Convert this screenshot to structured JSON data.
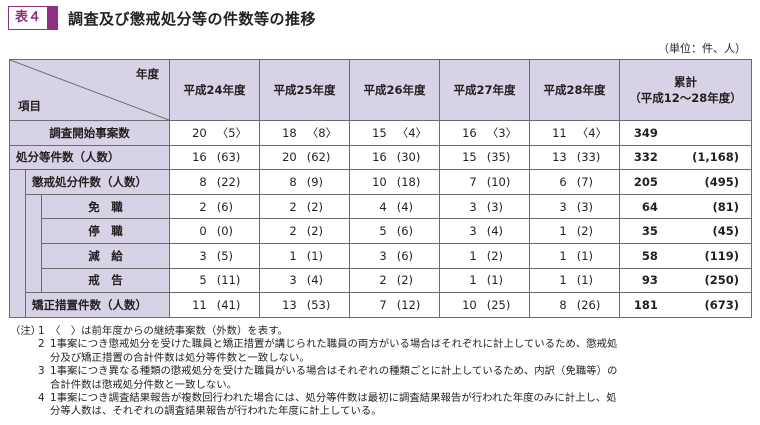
{
  "header": {
    "badge": "表４",
    "title": "調査及び懲戒処分等の件数等の推移"
  },
  "unit": "（単位：件、人）",
  "table": {
    "corner_top": "年度",
    "corner_bottom": "項目",
    "years": [
      "平成24年度",
      "平成25年度",
      "平成26年度",
      "平成27年度",
      "平成28年度"
    ],
    "total_header_1": "累計",
    "total_header_2": "（平成12〜28年度）",
    "rows": [
      {
        "label": "調査開始事案数",
        "values": [
          [
            "20",
            "〈5〉"
          ],
          [
            "18",
            "〈8〉"
          ],
          [
            "15",
            "〈4〉"
          ],
          [
            "16",
            "〈3〉"
          ],
          [
            "11",
            "〈4〉"
          ]
        ],
        "total": [
          "349",
          ""
        ]
      },
      {
        "label": "処分等件数（人数）",
        "values": [
          [
            "16",
            "(63)"
          ],
          [
            "20",
            "(62)"
          ],
          [
            "16",
            "(30)"
          ],
          [
            "15",
            "(35)"
          ],
          [
            "13",
            "(33)"
          ]
        ],
        "total": [
          "332",
          "(1,168)"
        ]
      },
      {
        "label": "懲戒処分件数（人数）",
        "values": [
          [
            "8",
            "(22)"
          ],
          [
            "8",
            "(9)"
          ],
          [
            "10",
            "(18)"
          ],
          [
            "7",
            "(10)"
          ],
          [
            "6",
            "(7)"
          ]
        ],
        "total": [
          "205",
          "(495)"
        ]
      },
      {
        "label": "免　職",
        "values": [
          [
            "2",
            "(6)"
          ],
          [
            "2",
            "(2)"
          ],
          [
            "4",
            "(4)"
          ],
          [
            "3",
            "(3)"
          ],
          [
            "3",
            "(3)"
          ]
        ],
        "total": [
          "64",
          "(81)"
        ]
      },
      {
        "label": "停　職",
        "values": [
          [
            "0",
            "(0)"
          ],
          [
            "2",
            "(2)"
          ],
          [
            "5",
            "(6)"
          ],
          [
            "3",
            "(4)"
          ],
          [
            "1",
            "(2)"
          ]
        ],
        "total": [
          "35",
          "(45)"
        ]
      },
      {
        "label": "減　給",
        "values": [
          [
            "3",
            "(5)"
          ],
          [
            "1",
            "(1)"
          ],
          [
            "3",
            "(6)"
          ],
          [
            "1",
            "(2)"
          ],
          [
            "1",
            "(1)"
          ]
        ],
        "total": [
          "58",
          "(119)"
        ]
      },
      {
        "label": "戒　告",
        "values": [
          [
            "5",
            "(11)"
          ],
          [
            "3",
            "(4)"
          ],
          [
            "2",
            "(2)"
          ],
          [
            "1",
            "(1)"
          ],
          [
            "1",
            "(1)"
          ]
        ],
        "total": [
          "93",
          "(250)"
        ]
      },
      {
        "label": "矯正措置件数（人数）",
        "values": [
          [
            "11",
            "(41)"
          ],
          [
            "13",
            "(53)"
          ],
          [
            "7",
            "(12)"
          ],
          [
            "10",
            "(25)"
          ],
          [
            "8",
            "(26)"
          ]
        ],
        "total": [
          "181",
          "(673)"
        ]
      }
    ]
  },
  "notes": {
    "prefix": "（注）",
    "items": [
      {
        "num": "1",
        "lines": [
          "〈　〉は前年度からの継続事案数（外数）を表す。"
        ]
      },
      {
        "num": "2",
        "lines": [
          "1事案につき懲戒処分を受けた職員と矯正措置が講じられた職員の両方がいる場合はそれぞれに計上しているため、懲戒処",
          "分及び矯正措置の合計件数は処分等件数と一致しない。"
        ]
      },
      {
        "num": "3",
        "lines": [
          "1事案につき異なる種類の懲戒処分を受けた職員がいる場合はそれぞれの種類ごとに計上しているため、内訳（免職等）の",
          "合計件数は懲戒処分件数と一致しない。"
        ]
      },
      {
        "num": "4",
        "lines": [
          "1事案につき調査結果報告が複数回行われた場合には、処分等件数は最初に調査結果報告が行われた年度のみに計上し、処",
          "分等人数は、それぞれの調査結果報告が行われた年度に計上している。"
        ]
      }
    ]
  }
}
